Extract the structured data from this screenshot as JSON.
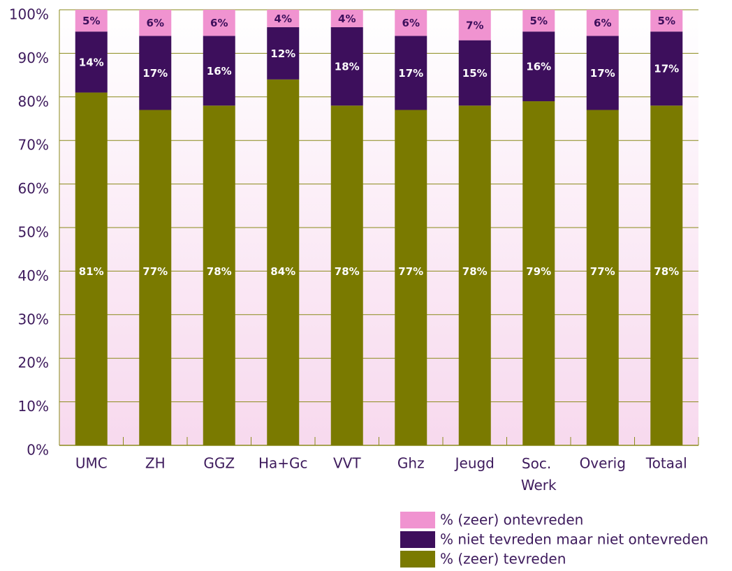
{
  "chart_data": {
    "type": "stacked_bar",
    "categories": [
      "UMC",
      "ZH",
      "GGZ",
      "Ha+Gc",
      "VVT",
      "Ghz",
      "Jeugd",
      "Soc. Werk",
      "Overig",
      "Totaal"
    ],
    "series": [
      {
        "name": "% (zeer) tevreden",
        "color": "#7a7a00",
        "values": [
          81,
          77,
          78,
          84,
          78,
          77,
          78,
          79,
          77,
          78
        ],
        "value_labels": [
          "81%",
          "77%",
          "78%",
          "84%",
          "78%",
          "77%",
          "78%",
          "79%",
          "77%",
          "78%"
        ]
      },
      {
        "name": "% niet tevreden maar niet ontevreden",
        "color": "#3d0f5c",
        "values": [
          14,
          17,
          16,
          12,
          18,
          17,
          15,
          16,
          17,
          17
        ],
        "value_labels": [
          "14%",
          "17%",
          "16%",
          "12%",
          "18%",
          "17%",
          "15%",
          "16%",
          "17%",
          "17%"
        ]
      },
      {
        "name": "% (zeer) ontevreden",
        "color": "#f093d0",
        "values": [
          5,
          6,
          6,
          4,
          4,
          6,
          7,
          5,
          6,
          5
        ],
        "value_labels": [
          "5%",
          "6%",
          "6%",
          "4%",
          "4%",
          "6%",
          "7%",
          "5%",
          "6%",
          "5%"
        ]
      }
    ],
    "ylim": [
      0,
      100
    ],
    "yticks": [
      {
        "value": 0,
        "label": "0%"
      },
      {
        "value": 10,
        "label": "10%"
      },
      {
        "value": 20,
        "label": "20%"
      },
      {
        "value": 30,
        "label": "30%"
      },
      {
        "value": 40,
        "label": "40%"
      },
      {
        "value": 50,
        "label": "50%"
      },
      {
        "value": 60,
        "label": "60%"
      },
      {
        "value": 70,
        "label": "70%"
      },
      {
        "value": 80,
        "label": "80%"
      },
      {
        "value": 90,
        "label": "90%"
      },
      {
        "value": 100,
        "label": "100%"
      }
    ],
    "grid": true
  }
}
